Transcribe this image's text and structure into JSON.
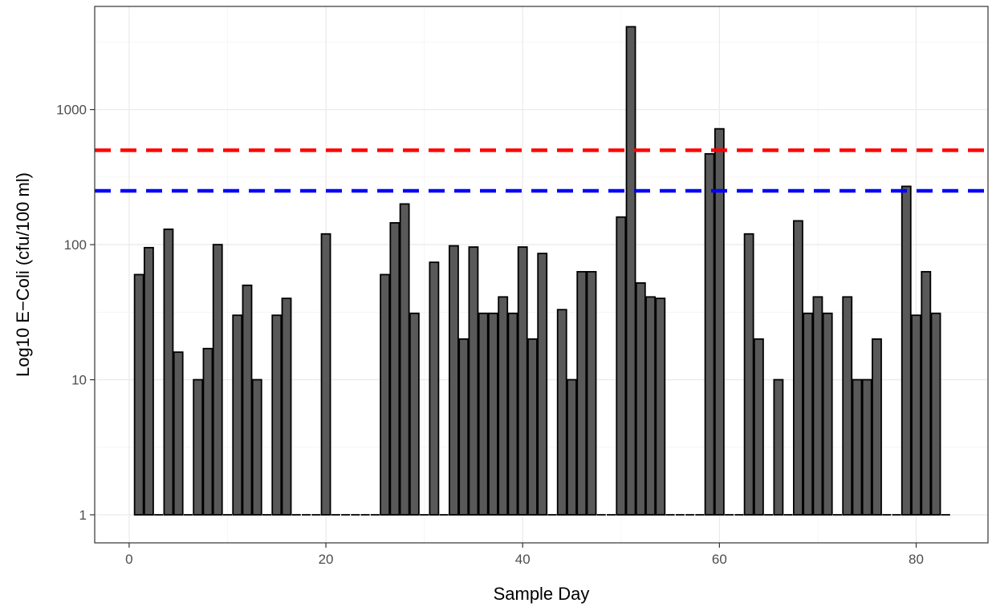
{
  "chart_data": {
    "type": "bar",
    "title": "",
    "xlabel": "Sample Day",
    "ylabel": "Log10 E−Coli (cfu/100 ml)",
    "y_scale": "log10",
    "xlim": [
      -3.5,
      87.3
    ],
    "ylim": [
      0.62,
      5800
    ],
    "grid": true,
    "x_ticks": [
      0,
      20,
      40,
      60,
      80
    ],
    "y_ticks": [
      1,
      10,
      100,
      1000
    ],
    "y_tick_labels": [
      "1",
      "10",
      "100",
      "1000"
    ],
    "bar_color": "#595959",
    "bar_edge_color": "#000000",
    "reference_lines": [
      {
        "y": 500,
        "color": "#ff0000",
        "style": "dashed"
      },
      {
        "y": 250,
        "color": "#0000ff",
        "style": "dashed"
      }
    ],
    "x": [
      1,
      2,
      3,
      4,
      5,
      6,
      7,
      8,
      9,
      10,
      11,
      12,
      13,
      14,
      15,
      16,
      17,
      18,
      19,
      20,
      21,
      22,
      23,
      24,
      25,
      26,
      27,
      28,
      29,
      30,
      31,
      32,
      33,
      34,
      35,
      36,
      37,
      38,
      39,
      40,
      41,
      42,
      43,
      44,
      45,
      46,
      47,
      48,
      49,
      50,
      51,
      52,
      53,
      54,
      55,
      56,
      57,
      58,
      59,
      60,
      61,
      62,
      63,
      64,
      65,
      66,
      67,
      68,
      69,
      70,
      71,
      72,
      73,
      74,
      75,
      76,
      77,
      78,
      79,
      80,
      81,
      82,
      83
    ],
    "values": [
      60,
      95,
      1,
      130,
      16,
      1,
      10,
      17,
      100,
      1,
      30,
      50,
      10,
      1,
      30,
      40,
      1,
      1,
      1,
      120,
      1,
      1,
      1,
      1,
      1,
      60,
      145,
      200,
      31,
      1,
      74,
      1,
      98,
      20,
      96,
      31,
      31,
      41,
      31,
      96,
      20,
      86,
      1,
      33,
      10,
      63,
      63,
      1,
      1,
      160,
      4100,
      52,
      41,
      40,
      1,
      1,
      1,
      1,
      470,
      720,
      1,
      1,
      120,
      20,
      1,
      10,
      1,
      150,
      31,
      41,
      31,
      1,
      41,
      10,
      10,
      20,
      1,
      1,
      270,
      30,
      63,
      31,
      1
    ]
  }
}
